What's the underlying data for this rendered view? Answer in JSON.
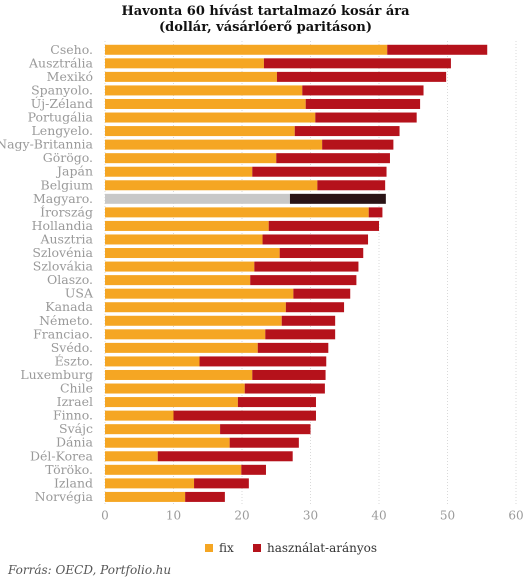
{
  "chart_data": {
    "type": "bar",
    "orientation": "horizontal",
    "stacked": true,
    "title": "Havonta 60 hívást tartalmazó kosár ára",
    "subtitle": "(dollár, vásárlóerő paritáson)",
    "categories": [
      "Cseho.",
      "Ausztrália",
      "Mexikó",
      "Spanyolo.",
      "Új-Zéland",
      "Portugália",
      "Lengyelo.",
      "Nagy-Britannia",
      "Görögo.",
      "Japán",
      "Belgium",
      "Magyaro.",
      "Írország",
      "Hollandia",
      "Ausztria",
      "Szlovénia",
      "Szlovákia",
      "Olaszo.",
      "USA",
      "Kanada",
      "Németo.",
      "Franciao.",
      "Svédo.",
      "Észto.",
      "Luxemburg",
      "Chile",
      "Izrael",
      "Finno.",
      "Svájc",
      "Dánia",
      "Dél-Korea",
      "Töröko.",
      "Izland",
      "Norvégia"
    ],
    "series": [
      {
        "name": "fix",
        "color": "#F5A623",
        "values": [
          41.2,
          23.2,
          25.1,
          28.8,
          29.3,
          30.7,
          27.7,
          31.7,
          25.0,
          21.5,
          31.0,
          27.0,
          38.5,
          23.9,
          23.0,
          25.5,
          21.8,
          21.2,
          27.5,
          26.4,
          25.8,
          23.4,
          22.3,
          13.8,
          21.5,
          20.4,
          19.4,
          10.0,
          16.8,
          18.2,
          7.7,
          19.9,
          13.0,
          11.7
        ]
      },
      {
        "name": "használat-arányos",
        "color": "#B5121B",
        "values": [
          14.6,
          27.3,
          24.7,
          17.7,
          16.7,
          14.8,
          15.3,
          10.4,
          16.6,
          19.6,
          9.9,
          14.0,
          2.0,
          16.1,
          15.4,
          12.2,
          15.2,
          15.5,
          8.3,
          8.5,
          7.8,
          10.2,
          10.3,
          18.5,
          10.7,
          11.7,
          11.4,
          20.8,
          13.2,
          10.1,
          19.7,
          3.6,
          8.0,
          5.8
        ]
      }
    ],
    "highlight": {
      "category": "Magyaro.",
      "colors": [
        "#C8C8C8",
        "#2A1416"
      ]
    },
    "xlim": [
      0,
      60
    ],
    "xticks": [
      0,
      10,
      20,
      30,
      40,
      50,
      60
    ],
    "grid": true,
    "legend_position": "bottom-center"
  },
  "source": "Forrás: OECD, Portfolio.hu",
  "colors": {
    "label": "#9a9a9a",
    "grid": "#d9d9d9",
    "tick": "#9a9a9a"
  }
}
